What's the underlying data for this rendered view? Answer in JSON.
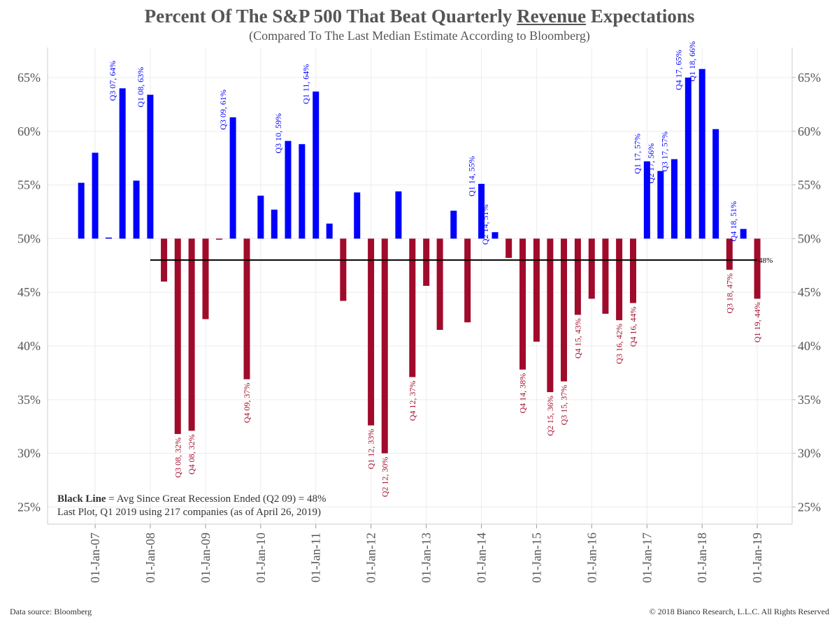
{
  "chart_data": {
    "type": "bar",
    "title": [
      "Percent Of The S&P 500 That Beat Quarterly ",
      "Revenue",
      " Expectations"
    ],
    "subtitle": "(Compared To The Last Median Estimate According to Bloomberg)",
    "x": [
      "2006-10-01",
      "2007-01-01",
      "2007-04-01",
      "2007-07-01",
      "2007-10-01",
      "2008-01-01",
      "2008-04-01",
      "2008-07-01",
      "2008-10-01",
      "2009-01-01",
      "2009-04-01",
      "2009-07-01",
      "2009-10-01",
      "2010-01-01",
      "2010-04-01",
      "2010-07-01",
      "2010-10-01",
      "2011-01-01",
      "2011-04-01",
      "2011-07-01",
      "2011-10-01",
      "2012-01-01",
      "2012-04-01",
      "2012-07-01",
      "2012-10-01",
      "2013-01-01",
      "2013-04-01",
      "2013-07-01",
      "2013-10-01",
      "2014-01-01",
      "2014-04-01",
      "2014-07-01",
      "2014-10-01",
      "2015-01-01",
      "2015-04-01",
      "2015-07-01",
      "2015-10-01",
      "2016-01-01",
      "2016-04-01",
      "2016-07-01",
      "2016-10-01",
      "2017-01-01",
      "2017-04-01",
      "2017-07-01",
      "2017-10-01",
      "2018-01-01",
      "2018-04-01",
      "2018-07-01",
      "2018-10-01",
      "2019-01-01"
    ],
    "values": [
      55.2,
      58,
      50.1,
      64,
      55.4,
      63.4,
      46,
      31.8,
      32.1,
      42.5,
      49.9,
      61.3,
      36.9,
      54,
      52.7,
      59.1,
      58.8,
      63.7,
      51.4,
      44.2,
      54.3,
      32.6,
      30,
      54.4,
      37.1,
      45.6,
      41.5,
      52.6,
      42.2,
      55.1,
      50.6,
      48.2,
      37.8,
      40.4,
      35.7,
      36.7,
      42.9,
      44.4,
      43,
      42.4,
      44,
      57.2,
      56.3,
      57.4,
      65,
      65.8,
      60.2,
      47.1,
      50.9,
      44.4
    ],
    "value_labels": [
      null,
      null,
      null,
      "Q3 07, 64%",
      null,
      "Q1 08, 63%",
      null,
      "Q3 08, 32%",
      "Q4 08, 32%",
      null,
      null,
      "Q3 09, 61%",
      "Q4 09, 37%",
      null,
      null,
      "Q3 10, 59%",
      null,
      "Q1 11, 64%",
      null,
      null,
      null,
      "Q1 12, 33%",
      "Q2 12, 30%",
      null,
      "Q4 12, 37%",
      null,
      null,
      null,
      null,
      "Q1 14, 55%",
      "Q2 14, 51%",
      null,
      "Q4 14, 38%",
      null,
      "Q2 15, 36%",
      "Q3 15, 37%",
      "Q4 15, 43%",
      null,
      null,
      "Q3 16, 42%",
      "Q4 16, 44%",
      "Q1 17, 57%",
      "Q2 17, 56%",
      "Q3 17, 57%",
      "Q4 17, 65%",
      "Q1 18, 66%",
      null,
      "Q3 18, 47%",
      "Q4 18, 51%",
      "Q1 19, 44%"
    ],
    "baseline": 50,
    "color_above": "#0000ff",
    "color_below": "#a00b2b",
    "xlim": [
      "2006-02-20",
      "2019-08-20"
    ],
    "xticks": [
      {
        "value": "2007-01-01",
        "label": "01-Jan-07"
      },
      {
        "value": "2008-01-01",
        "label": "01-Jan-08"
      },
      {
        "value": "2009-01-01",
        "label": "01-Jan-09"
      },
      {
        "value": "2010-01-01",
        "label": "01-Jan-10"
      },
      {
        "value": "2011-01-01",
        "label": "01-Jan-11"
      },
      {
        "value": "2012-01-01",
        "label": "01-Jan-12"
      },
      {
        "value": "2013-01-01",
        "label": "01-Jan-13"
      },
      {
        "value": "2014-01-01",
        "label": "01-Jan-14"
      },
      {
        "value": "2015-01-01",
        "label": "01-Jan-15"
      },
      {
        "value": "2016-01-01",
        "label": "01-Jan-16"
      },
      {
        "value": "2017-01-01",
        "label": "01-Jan-17"
      },
      {
        "value": "2018-01-01",
        "label": "01-Jan-18"
      },
      {
        "value": "2019-01-01",
        "label": "01-Jan-19"
      }
    ],
    "ylim": [
      23.4,
      67.8
    ],
    "yticks": [
      {
        "value": 25,
        "label": "25%"
      },
      {
        "value": 30,
        "label": "30%"
      },
      {
        "value": 35,
        "label": "35%"
      },
      {
        "value": 40,
        "label": "40%"
      },
      {
        "value": 45,
        "label": "45%"
      },
      {
        "value": 50,
        "label": "50%"
      },
      {
        "value": 55,
        "label": "55%"
      },
      {
        "value": 60,
        "label": "60%"
      },
      {
        "value": 65,
        "label": "65%"
      }
    ],
    "y2lim": [
      23.4,
      67.8
    ],
    "y2ticks": [
      {
        "value": 25,
        "label": "25%"
      },
      {
        "value": 30,
        "label": "30%"
      },
      {
        "value": 35,
        "label": "35%"
      },
      {
        "value": 40,
        "label": "40%"
      },
      {
        "value": 45,
        "label": "45%"
      },
      {
        "value": 50,
        "label": "50%"
      },
      {
        "value": 55,
        "label": "55%"
      },
      {
        "value": 60,
        "label": "60%"
      },
      {
        "value": 65,
        "label": "65%"
      }
    ],
    "grid": true,
    "reference_line": {
      "value": 48,
      "label": "48%",
      "start": "2008-01-01",
      "end": "2019-01-01",
      "color": "#000000"
    },
    "annotations": [
      [
        "Black Line",
        " = Avg Since Great Recession Ended (Q2 09) = 48%"
      ],
      [
        "Last Plot, Q1 2019 using 217 companies (as of April 26, 2019)"
      ]
    ],
    "source": "Data source: Bloomberg",
    "copyright": "© 2018 Bianco Research, L.L.C. All Rights Reserved"
  }
}
